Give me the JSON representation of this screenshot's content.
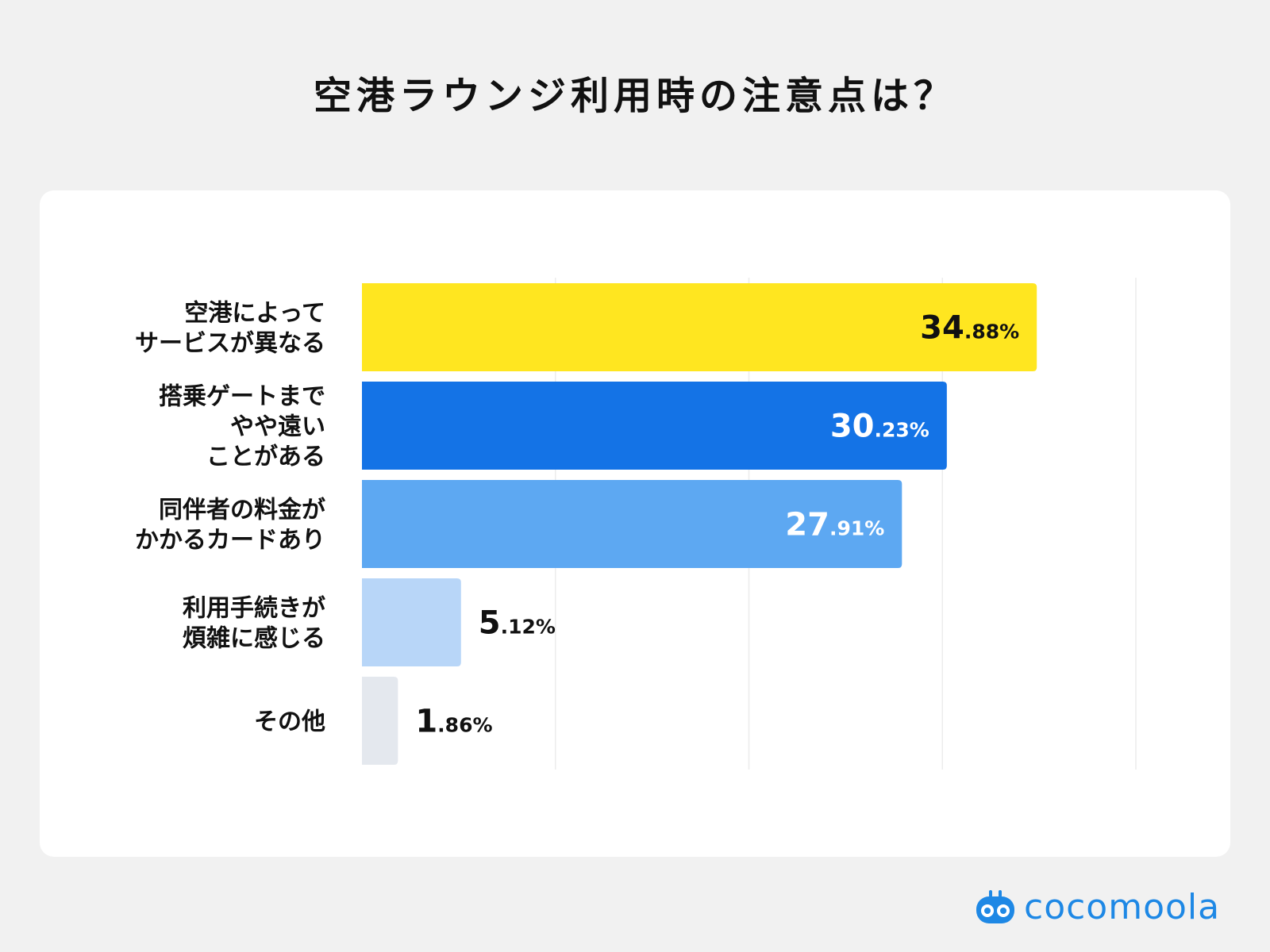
{
  "page": {
    "title": "空港ラウンジ利用時の注意点は？"
  },
  "chart_data": {
    "type": "bar",
    "orientation": "horizontal",
    "title": "空港ラウンジ利用時の注意点は？",
    "xlabel": "",
    "ylabel": "",
    "unit": "%",
    "xlim": [
      0,
      40
    ],
    "grid": true,
    "legend": "none",
    "categories": [
      "空港によって\nサービスが異なる",
      "搭乗ゲートまで\nやや遠い\nことがある",
      "同伴者の料金が\nかかるカードあり",
      "利用手続きが\n煩雑に感じる",
      "その他"
    ],
    "values": [
      34.88,
      30.23,
      27.91,
      5.12,
      1.86
    ],
    "value_labels": [
      {
        "integer": "34",
        "decimal": ".88%"
      },
      {
        "integer": "30",
        "decimal": ".23%"
      },
      {
        "integer": "27",
        "decimal": ".91%"
      },
      {
        "integer": "5",
        "decimal": ".12%"
      },
      {
        "integer": "1",
        "decimal": ".86%"
      }
    ],
    "colors": [
      "#ffe620",
      "#1473e6",
      "#5da8f2",
      "#b8d6f8",
      "#e4e8ee"
    ],
    "label_colors": [
      "#111111",
      "#ffffff",
      "#ffffff",
      "#111111",
      "#111111"
    ],
    "grid_color": "#ececec"
  },
  "logo": {
    "text": "cocomoola",
    "color": "#1e88e5"
  }
}
